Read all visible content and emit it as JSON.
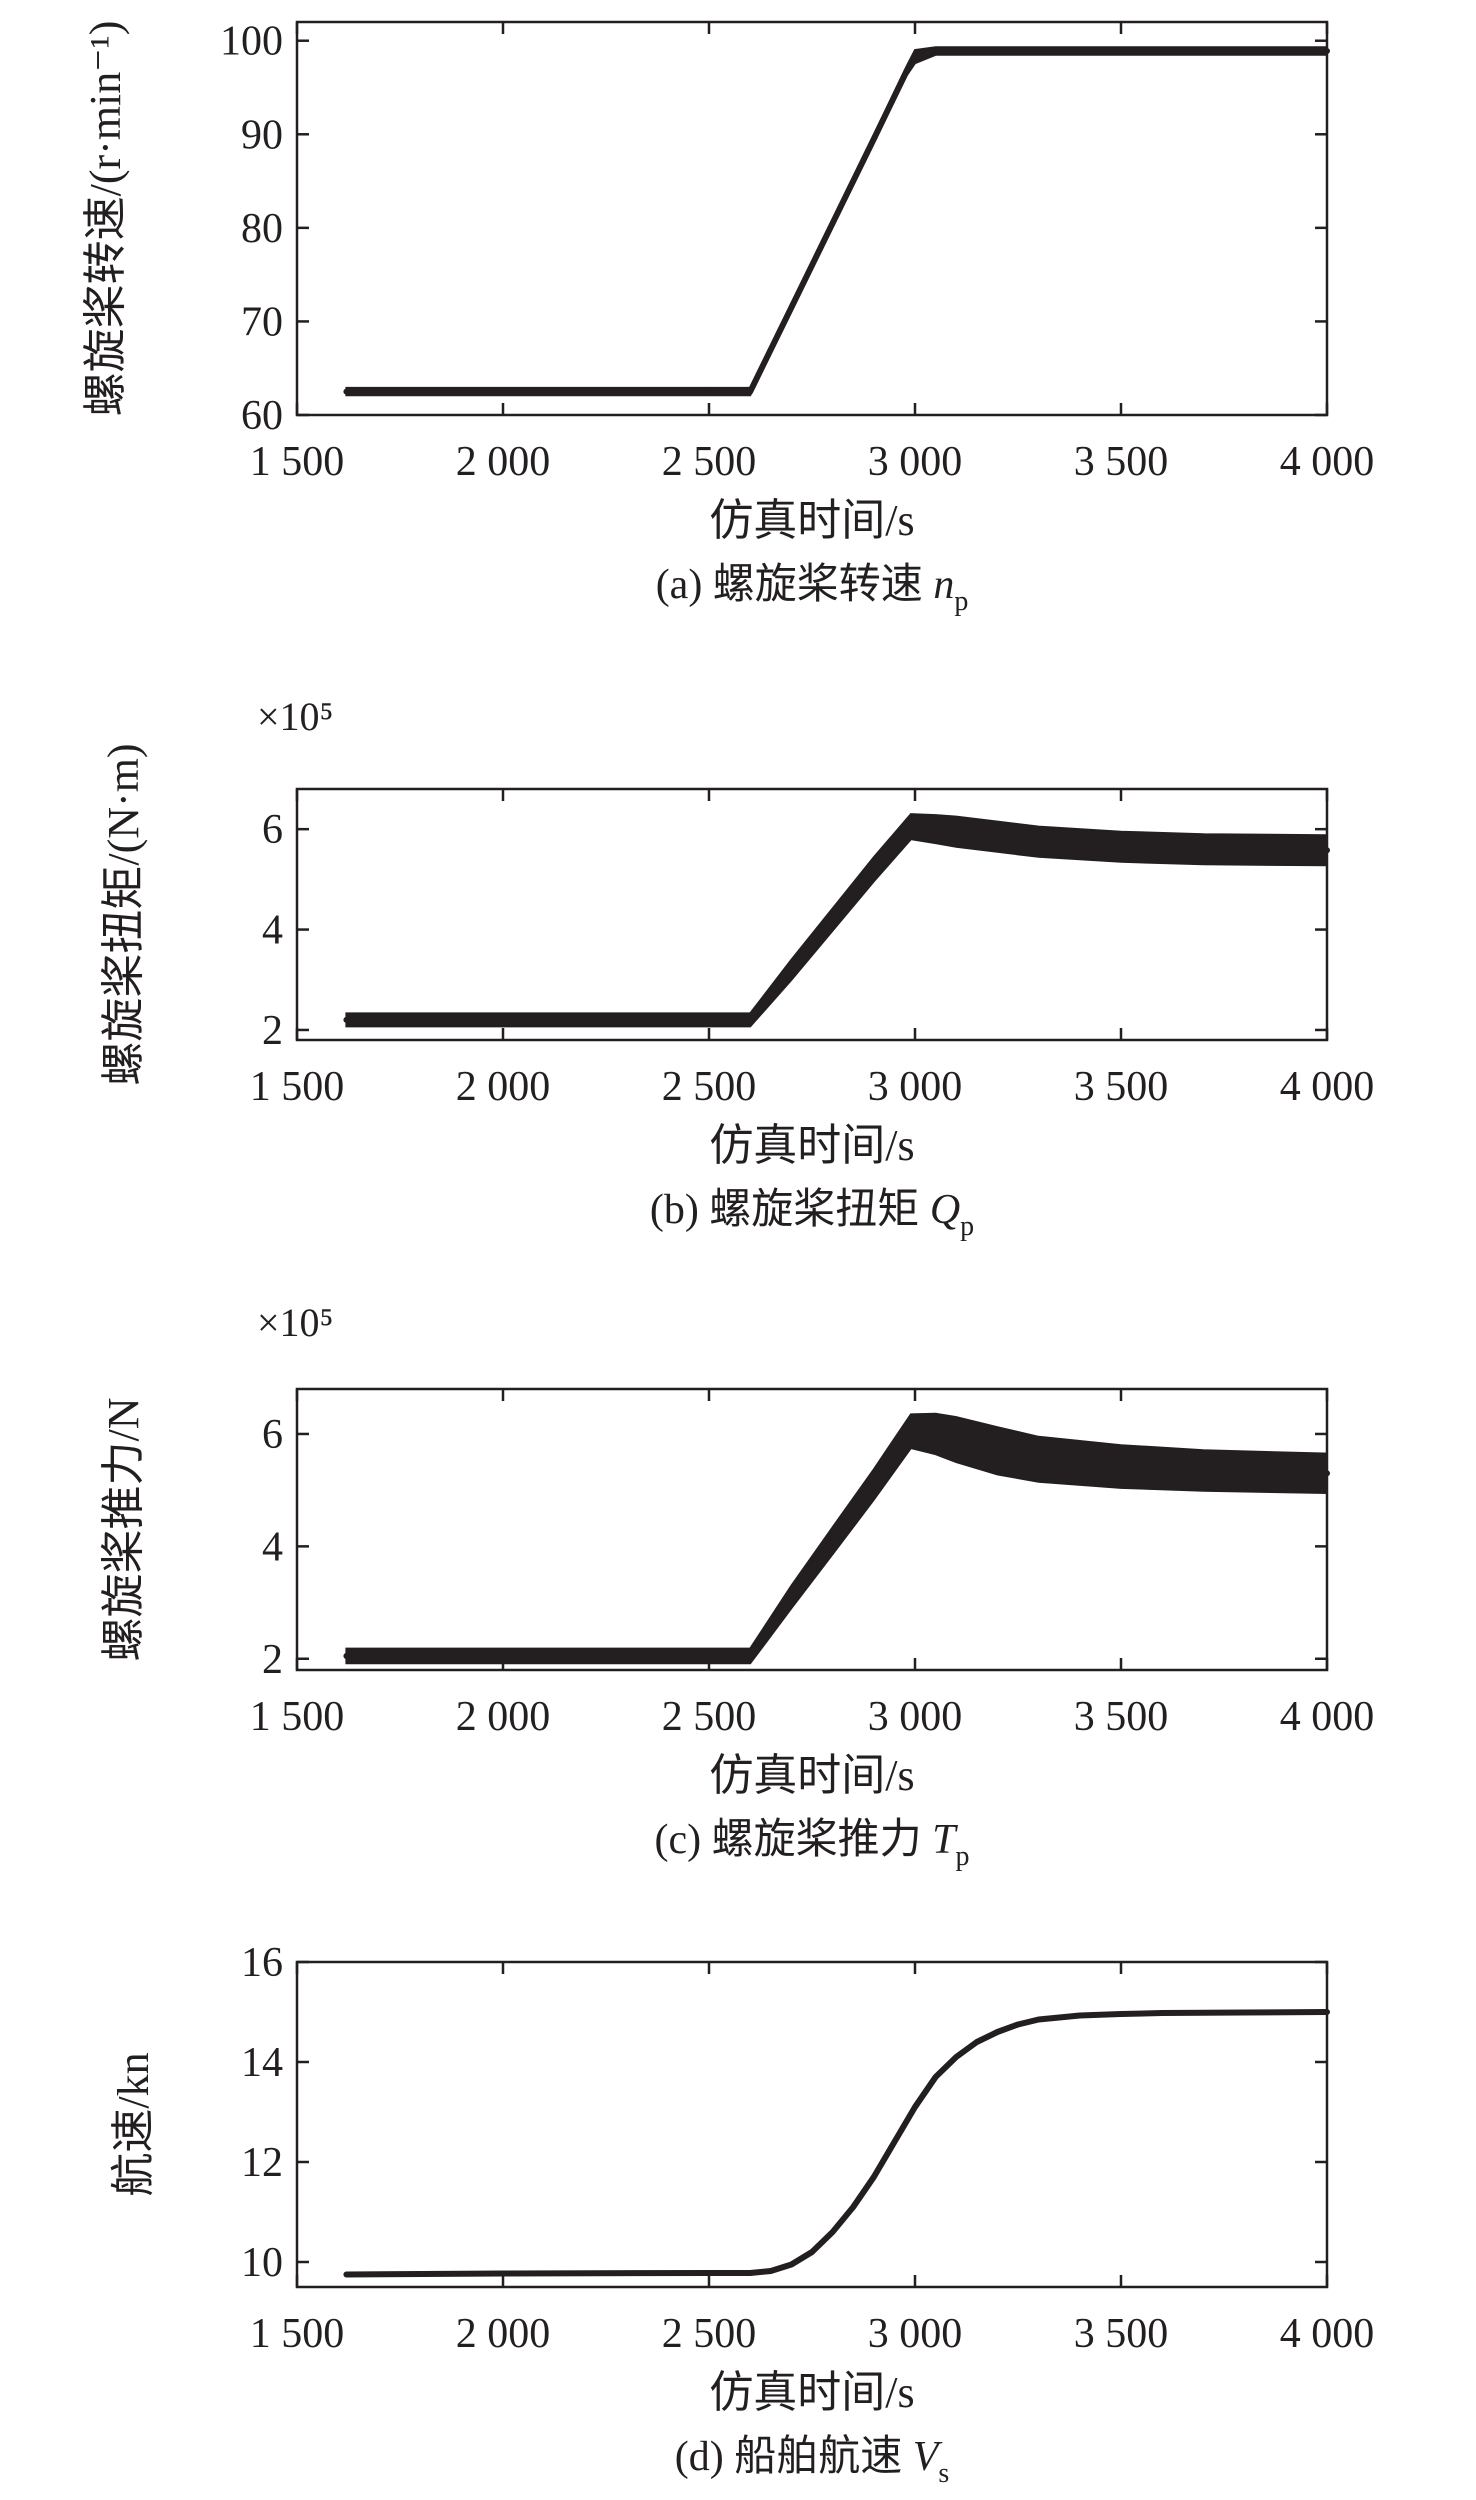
{
  "chart_data": [
    {
      "type": "line",
      "caption": {
        "prefix": "(a) 螺旋桨转速 ",
        "symbol": "n",
        "subscript": "p"
      },
      "xlabel": "仿真时间/s",
      "ylabel": "螺旋桨转速/(r·min⁻¹)",
      "y_exponent": "",
      "xlim": [
        1500,
        4000
      ],
      "ylim": [
        60,
        102
      ],
      "xticks": [
        1500,
        2000,
        2500,
        3000,
        3500,
        4000
      ],
      "xtick_labels": [
        "1 500",
        "2 000",
        "2 500",
        "3 000",
        "3 500",
        "4 000"
      ],
      "yticks": [
        60,
        70,
        80,
        90,
        100
      ],
      "ytick_labels": [
        "60",
        "70",
        "80",
        "90",
        "100"
      ],
      "color": "#231f20",
      "series": [
        {
          "x": [
            1620,
            2000,
            2500,
            2600,
            2700,
            2800,
            2900,
            2980,
            3000,
            3050,
            3500,
            4000
          ],
          "y": [
            62.5,
            62.5,
            62.5,
            62.5,
            71.5,
            80.5,
            89.5,
            96.8,
            98.3,
            98.9,
            98.9,
            98.9
          ],
          "band": [
            0.4,
            0.4,
            0.4,
            0.4,
            0.4,
            0.4,
            0.4,
            0.5,
            0.7,
            0.4,
            0.4,
            0.4
          ]
        }
      ],
      "grid": false,
      "legend": "none"
    },
    {
      "type": "line",
      "caption": {
        "prefix": "(b) 螺旋桨扭矩 ",
        "symbol": "Q",
        "subscript": "p"
      },
      "xlabel": "仿真时间/s",
      "ylabel": "螺旋桨扭矩/(N·m)",
      "y_exponent": "×10⁵",
      "xlim": [
        1500,
        4000
      ],
      "ylim": [
        1.8,
        6.8
      ],
      "xticks": [
        1500,
        2000,
        2500,
        3000,
        3500,
        4000
      ],
      "xtick_labels": [
        "1 500",
        "2 000",
        "2 500",
        "3 000",
        "3 500",
        "4 000"
      ],
      "yticks": [
        2,
        4,
        6
      ],
      "ytick_labels": [
        "2",
        "4",
        "6"
      ],
      "color": "#231f20",
      "series": [
        {
          "x": [
            1620,
            2000,
            2500,
            2600,
            2700,
            2800,
            2900,
            2990,
            3050,
            3100,
            3200,
            3300,
            3500,
            3700,
            4000
          ],
          "y": [
            2.2,
            2.2,
            2.2,
            2.2,
            3.2,
            4.2,
            5.2,
            6.05,
            6.0,
            5.95,
            5.85,
            5.75,
            5.65,
            5.6,
            5.58
          ],
          "band": [
            0.13,
            0.13,
            0.13,
            0.13,
            0.2,
            0.22,
            0.24,
            0.25,
            0.28,
            0.3,
            0.3,
            0.3,
            0.3,
            0.3,
            0.3
          ]
        }
      ],
      "grid": false,
      "legend": "none"
    },
    {
      "type": "line",
      "caption": {
        "prefix": "(c) 螺旋桨推力 ",
        "symbol": "T",
        "subscript": "p"
      },
      "xlabel": "仿真时间/s",
      "ylabel": "螺旋桨推力/N",
      "y_exponent": "×10⁵",
      "xlim": [
        1500,
        4000
      ],
      "ylim": [
        1.8,
        6.8
      ],
      "xticks": [
        1500,
        2000,
        2500,
        3000,
        3500,
        4000
      ],
      "xtick_labels": [
        "1 500",
        "2 000",
        "2 500",
        "3 000",
        "3 500",
        "4 000"
      ],
      "yticks": [
        2,
        4,
        6
      ],
      "ytick_labels": [
        "2",
        "4",
        "6"
      ],
      "color": "#231f20",
      "series": [
        {
          "x": [
            1620,
            2000,
            2500,
            2600,
            2700,
            2800,
            2900,
            2990,
            3050,
            3100,
            3200,
            3300,
            3500,
            3700,
            4000
          ],
          "y": [
            2.05,
            2.05,
            2.05,
            2.05,
            3.1,
            4.1,
            5.1,
            6.05,
            6.0,
            5.9,
            5.7,
            5.55,
            5.42,
            5.35,
            5.3
          ],
          "band": [
            0.13,
            0.13,
            0.13,
            0.13,
            0.2,
            0.24,
            0.27,
            0.3,
            0.36,
            0.4,
            0.42,
            0.4,
            0.38,
            0.36,
            0.35
          ]
        }
      ],
      "grid": false,
      "legend": "none"
    },
    {
      "type": "line",
      "caption": {
        "prefix": "(d) 船舶航速 ",
        "symbol": "V",
        "subscript": "s"
      },
      "xlabel": "仿真时间/s",
      "ylabel": "航速/kn",
      "y_exponent": "",
      "xlim": [
        1500,
        4000
      ],
      "ylim": [
        9.5,
        16
      ],
      "xticks": [
        1500,
        2000,
        2500,
        3000,
        3500,
        4000
      ],
      "xtick_labels": [
        "1 500",
        "2 000",
        "2 500",
        "3 000",
        "3 500",
        "4 000"
      ],
      "yticks": [
        10,
        12,
        14,
        16
      ],
      "ytick_labels": [
        "10",
        "12",
        "14",
        "16"
      ],
      "color": "#231f20",
      "series": [
        {
          "x": [
            1620,
            2000,
            2500,
            2600,
            2650,
            2700,
            2750,
            2800,
            2850,
            2900,
            2950,
            3000,
            3050,
            3100,
            3150,
            3200,
            3250,
            3300,
            3400,
            3500,
            3600,
            3800,
            4000
          ],
          "y": [
            9.75,
            9.77,
            9.78,
            9.78,
            9.82,
            9.95,
            10.2,
            10.6,
            11.1,
            11.7,
            12.4,
            13.1,
            13.7,
            14.1,
            14.4,
            14.6,
            14.75,
            14.85,
            14.93,
            14.96,
            14.98,
            14.99,
            15.0
          ],
          "band": [
            0.02,
            0.02,
            0.02,
            0.02,
            0.02,
            0.02,
            0.02,
            0.02,
            0.02,
            0.02,
            0.02,
            0.02,
            0.02,
            0.02,
            0.02,
            0.02,
            0.02,
            0.02,
            0.02,
            0.02,
            0.02,
            0.02,
            0.02
          ]
        }
      ],
      "grid": false,
      "legend": "none"
    }
  ]
}
